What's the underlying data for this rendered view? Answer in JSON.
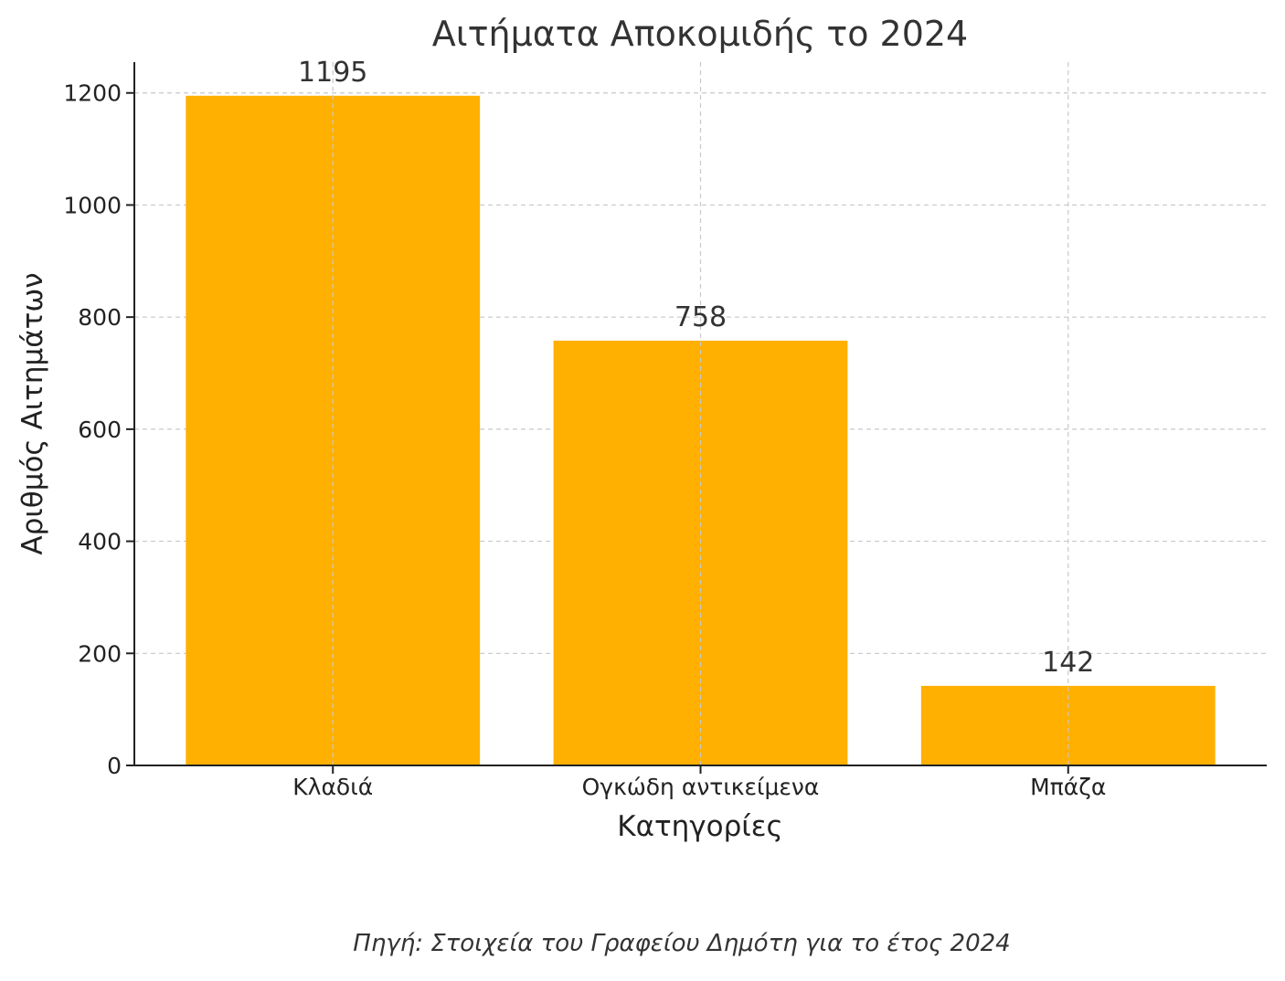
{
  "chart_data": {
    "type": "bar",
    "title": "Αιτήματα Αποκομιδής το 2024",
    "xlabel": "Κατηγορίες",
    "ylabel": "Αριθμός Αιτημάτων",
    "categories": [
      "Κλαδιά",
      "Ογκώδη αντικείμενα",
      "Μπάζα"
    ],
    "values": [
      1195,
      758,
      142
    ],
    "data_labels": [
      "1195",
      "758",
      "142"
    ],
    "ylim": [
      0,
      1255
    ],
    "yticks": [
      0,
      200,
      400,
      600,
      800,
      1000,
      1200
    ],
    "ytick_labels": [
      "0",
      "200",
      "400",
      "600",
      "800",
      "1000",
      "1200"
    ],
    "grid": true,
    "bar_color": "#FFB000"
  },
  "source_note": "Πηγή: Στοιχεία του Γραφείου Δημότη για το έτος 2024"
}
